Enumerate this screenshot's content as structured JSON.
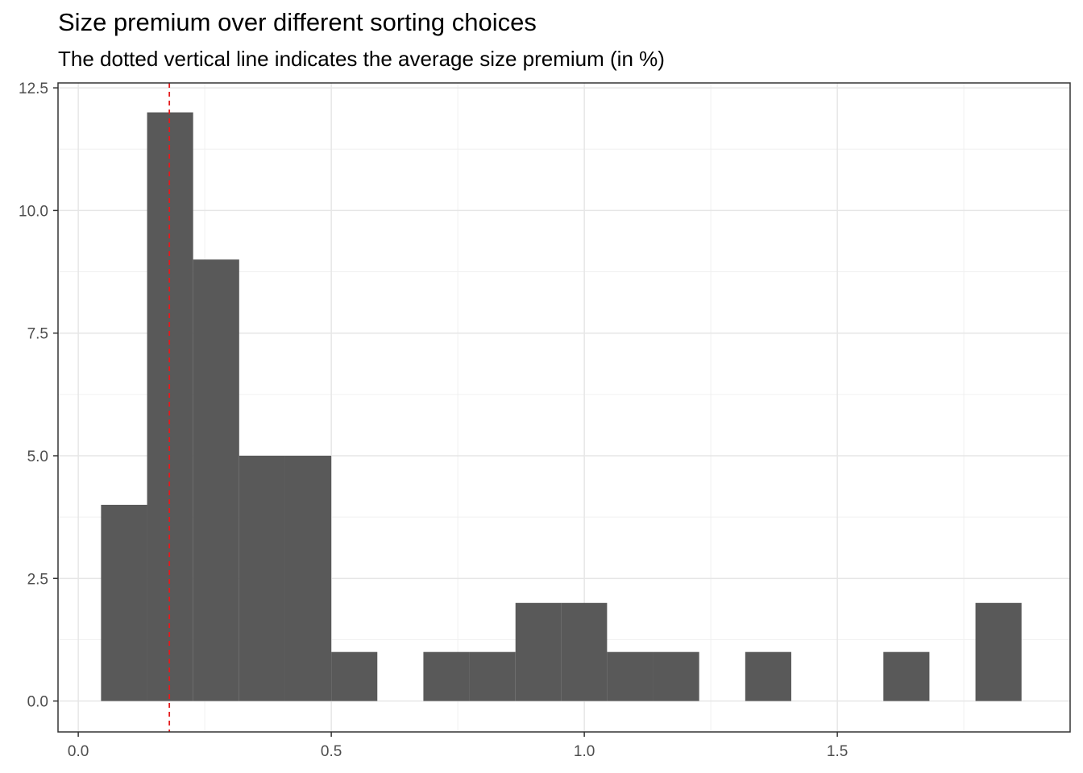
{
  "title": "Size premium over different sorting choices",
  "subtitle": "The dotted vertical line indicates the average size premium (in %)",
  "chart_data": {
    "type": "bar",
    "subtype": "histogram",
    "title": "Size premium over different sorting choices",
    "subtitle": "The dotted vertical line indicates the average size premium (in %)",
    "xlabel": "",
    "ylabel": "",
    "xlim": [
      -0.04,
      1.96
    ],
    "ylim": [
      -0.63,
      12.6
    ],
    "xticks": [
      0.0,
      0.5,
      1.0,
      1.5
    ],
    "xtick_labels": [
      "0.0",
      "0.5",
      "1.0",
      "1.5"
    ],
    "yticks": [
      0.0,
      2.5,
      5.0,
      7.5,
      10.0,
      12.5
    ],
    "ytick_labels": [
      "0.0",
      "2.5",
      "5.0",
      "7.5",
      "10.0",
      "12.5"
    ],
    "grid": true,
    "bar_color": "#595959",
    "bins": [
      {
        "x0": 0.045,
        "x1": 0.136,
        "count": 4
      },
      {
        "x0": 0.136,
        "x1": 0.227,
        "count": 12
      },
      {
        "x0": 0.227,
        "x1": 0.318,
        "count": 9
      },
      {
        "x0": 0.318,
        "x1": 0.409,
        "count": 5
      },
      {
        "x0": 0.409,
        "x1": 0.5,
        "count": 5
      },
      {
        "x0": 0.5,
        "x1": 0.591,
        "count": 1
      },
      {
        "x0": 0.591,
        "x1": 0.682,
        "count": 0
      },
      {
        "x0": 0.682,
        "x1": 0.773,
        "count": 1
      },
      {
        "x0": 0.773,
        "x1": 0.864,
        "count": 1
      },
      {
        "x0": 0.864,
        "x1": 0.955,
        "count": 2
      },
      {
        "x0": 0.955,
        "x1": 1.045,
        "count": 2
      },
      {
        "x0": 1.045,
        "x1": 1.136,
        "count": 1
      },
      {
        "x0": 1.136,
        "x1": 1.227,
        "count": 1
      },
      {
        "x0": 1.227,
        "x1": 1.318,
        "count": 0
      },
      {
        "x0": 1.318,
        "x1": 1.409,
        "count": 1
      },
      {
        "x0": 1.409,
        "x1": 1.5,
        "count": 0
      },
      {
        "x0": 1.5,
        "x1": 1.591,
        "count": 0
      },
      {
        "x0": 1.591,
        "x1": 1.682,
        "count": 1
      },
      {
        "x0": 1.682,
        "x1": 1.773,
        "count": 0
      },
      {
        "x0": 1.773,
        "x1": 1.864,
        "count": 2
      }
    ],
    "average_line": {
      "x": 0.18,
      "color": "#e41a1c",
      "style": "dashed"
    }
  }
}
